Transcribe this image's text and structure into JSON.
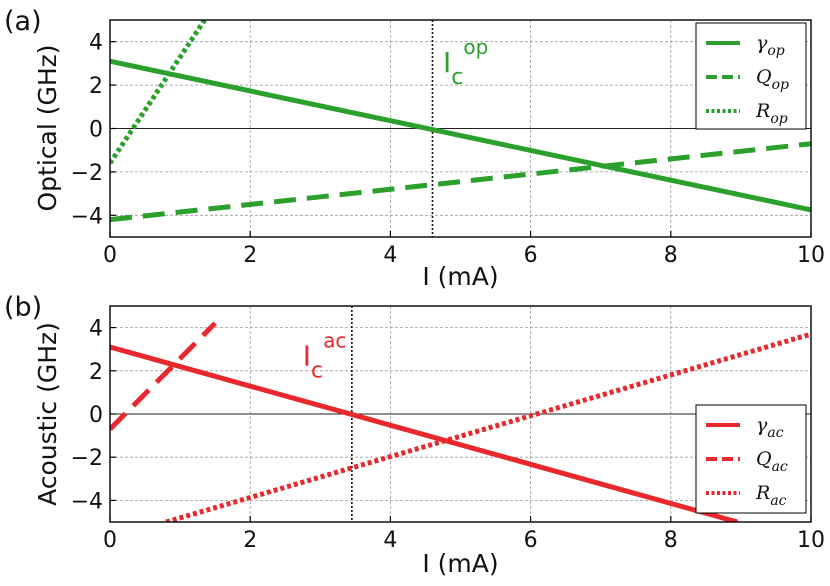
{
  "figure_labels": [
    "(a)",
    "(b)"
  ],
  "chart_data": [
    {
      "type": "line",
      "panel_label": "(a)",
      "xlabel": "I (mA)",
      "ylabel": "Optical (GHz)",
      "xlim": [
        0,
        10
      ],
      "ylim": [
        -5,
        5
      ],
      "x_ticks": [
        0,
        2,
        4,
        6,
        8,
        10
      ],
      "y_ticks": [
        4,
        2,
        0,
        -2,
        -4
      ],
      "grid": true,
      "color": "#2ca02c",
      "legend_position": "top-right",
      "series": [
        {
          "name": "γ",
          "sub": "op",
          "style": "solid",
          "x": [
            0,
            10
          ],
          "y": [
            3.1,
            -3.75
          ]
        },
        {
          "name": "Q",
          "sub": "op",
          "style": "dashed",
          "x": [
            0,
            10
          ],
          "y": [
            -4.2,
            -0.7
          ]
        },
        {
          "name": "R",
          "sub": "op",
          "style": "dotted",
          "x": [
            0,
            1.35
          ],
          "y": [
            -1.6,
            5.0
          ]
        }
      ],
      "vline": {
        "x": 4.6
      },
      "annotation": {
        "main": "I",
        "sub": "c",
        "sup": "op",
        "x": 4.75,
        "y": 2.6
      }
    },
    {
      "type": "line",
      "panel_label": "(b)",
      "xlabel": "I (mA)",
      "ylabel": "Acoustic (GHz)",
      "xlim": [
        0,
        10
      ],
      "ylim": [
        -5,
        5
      ],
      "x_ticks": [
        0,
        2,
        4,
        6,
        8,
        10
      ],
      "y_ticks": [
        4,
        2,
        0,
        -2,
        -4
      ],
      "grid": true,
      "color": "#e8282d",
      "legend_position": "bottom-right",
      "series": [
        {
          "name": "γ",
          "sub": "ac",
          "style": "solid",
          "x": [
            0,
            8.95
          ],
          "y": [
            3.1,
            -5.0
          ]
        },
        {
          "name": "Q",
          "sub": "ac",
          "style": "dashed",
          "x": [
            0,
            1.5
          ],
          "y": [
            -0.7,
            4.2
          ]
        },
        {
          "name": "R",
          "sub": "ac",
          "style": "dotted",
          "x": [
            0.8,
            10
          ],
          "y": [
            -5.0,
            3.7
          ]
        }
      ],
      "vline": {
        "x": 3.45
      },
      "annotation": {
        "main": "I",
        "sub": "c",
        "sup": "ac",
        "x": 2.75,
        "y": 2.25
      }
    }
  ]
}
